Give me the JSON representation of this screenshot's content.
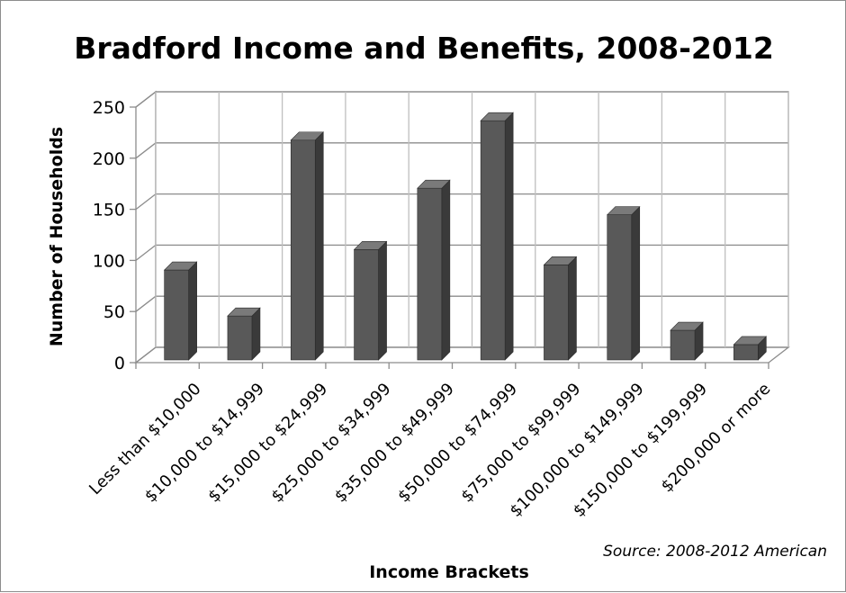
{
  "chart_data": {
    "type": "bar",
    "title": "Bradford Income and Benefits, 2008-2012",
    "xlabel": "Income Brackets",
    "ylabel": "Number of Households",
    "ylim": [
      0,
      250
    ],
    "yticks": [
      0,
      50,
      100,
      150,
      200,
      250
    ],
    "grid": true,
    "categories": [
      "Less than $10,000",
      "$10,000 to $14,999",
      "$15,000 to $24,999",
      "$25,000 to $34,999",
      "$35,000 to $49,999",
      "$50,000 to $74,999",
      "$75,000 to $99,999",
      "$100,000 to $149,999",
      "$150,000 to $199,999",
      "$200,000 or more"
    ],
    "values": [
      88,
      43,
      215,
      108,
      168,
      234,
      93,
      142,
      29,
      15
    ],
    "bar_color": "#595959",
    "bar_side_color": "#3a3a3a",
    "bar_top_color": "#7a7a7a",
    "source": "Source: 2008-2012 American"
  }
}
